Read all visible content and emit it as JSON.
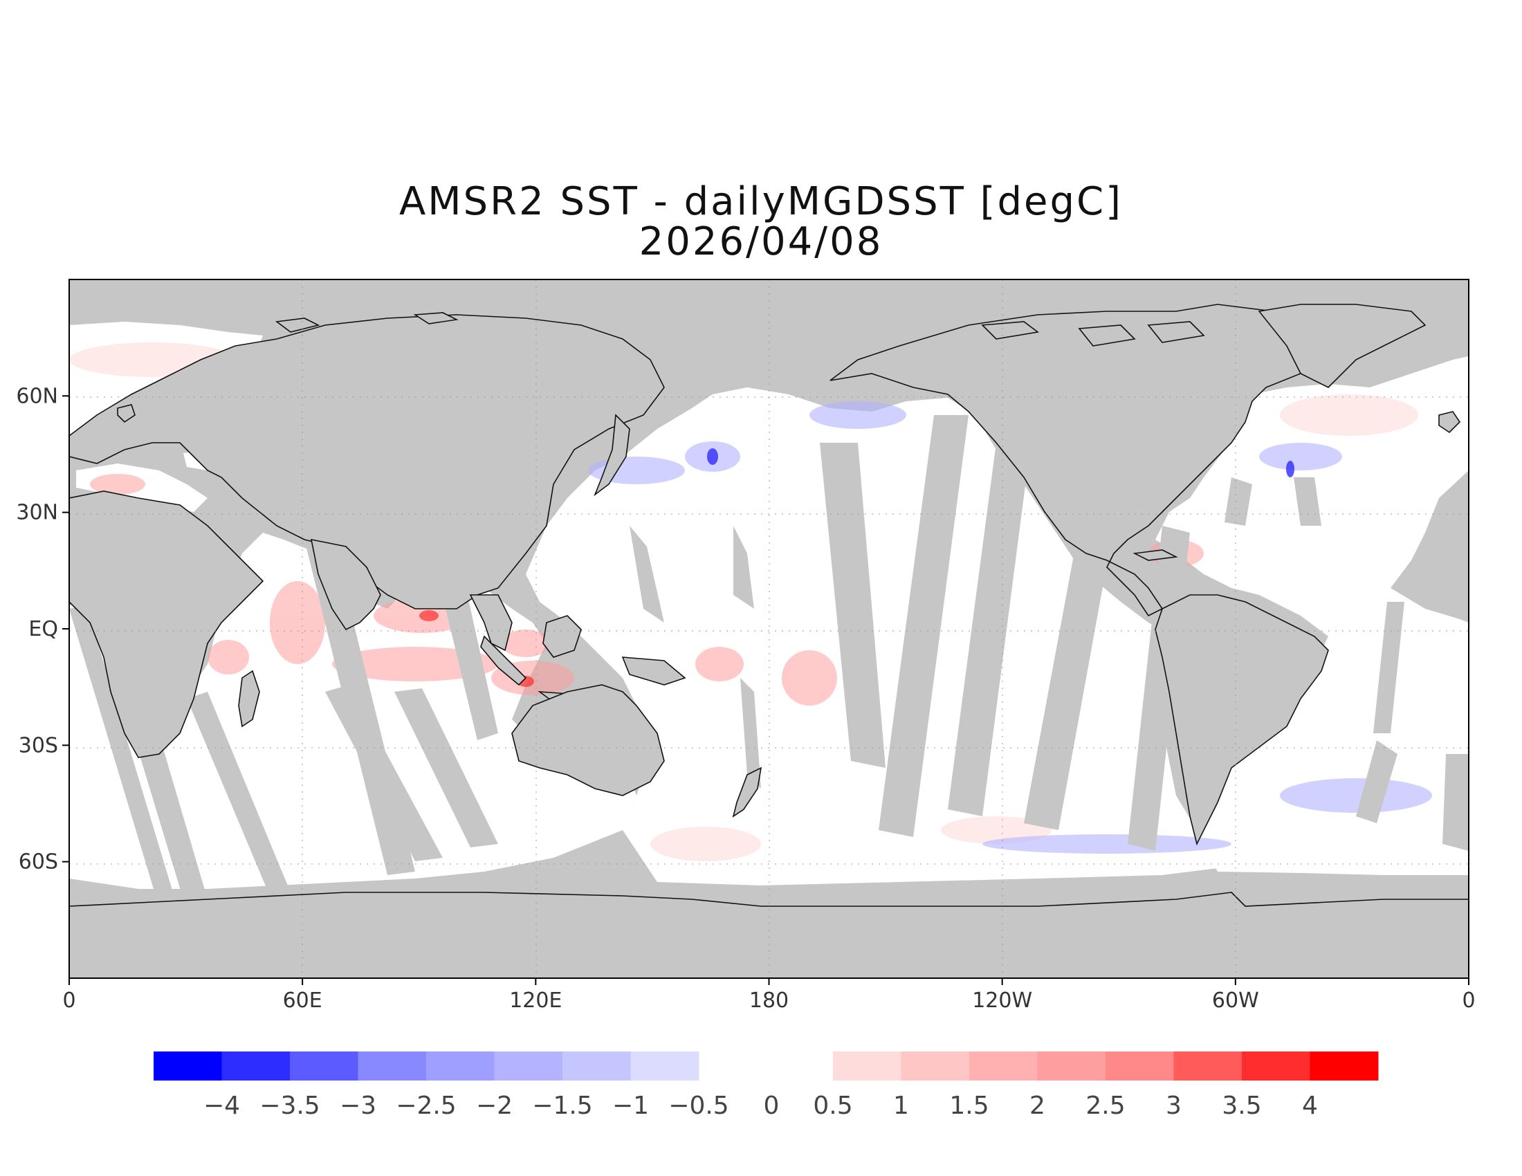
{
  "title": {
    "line1": "AMSR2 SST - dailyMGDSST [degC]",
    "line2": "2026/04/08"
  },
  "map": {
    "projection": "equirectangular",
    "central_longitude": 180,
    "land_color": "#c6c6c6",
    "ocean_neutral_color": "#ffffff",
    "missing_swath_color": "#c6c6c6",
    "lon_ticks": [
      {
        "lon": 0,
        "label": "0"
      },
      {
        "lon": 60,
        "label": "60E"
      },
      {
        "lon": 120,
        "label": "120E"
      },
      {
        "lon": 180,
        "label": "180"
      },
      {
        "lon": 240,
        "label": "120W"
      },
      {
        "lon": 300,
        "label": "60W"
      },
      {
        "lon": 360,
        "label": "0"
      }
    ],
    "lat_ticks": [
      {
        "lat": 60,
        "label": "60N"
      },
      {
        "lat": 30,
        "label": "30N"
      },
      {
        "lat": 0,
        "label": "EQ"
      },
      {
        "lat": -30,
        "label": "30S"
      },
      {
        "lat": -60,
        "label": "60S"
      }
    ]
  },
  "colorbar": {
    "negative": {
      "colors": [
        "#0000ff",
        "#2d2dff",
        "#5b5bff",
        "#8888ff",
        "#9f9fff",
        "#b3b3ff",
        "#c6c6ff",
        "#dcdcff"
      ],
      "labels": [
        "-4",
        "-3.5",
        "-3",
        "-2.5",
        "-2",
        "-1.5",
        "-1",
        "-0.5"
      ]
    },
    "zero_label": "0",
    "positive": {
      "colors": [
        "#ffdcdc",
        "#ffc6c6",
        "#ffb0b0",
        "#ff9e9e",
        "#ff8888",
        "#ff5b5b",
        "#ff2d2d",
        "#ff0000"
      ],
      "labels": [
        "0.5",
        "1",
        "1.5",
        "2",
        "2.5",
        "3",
        "3.5",
        "4"
      ]
    }
  }
}
